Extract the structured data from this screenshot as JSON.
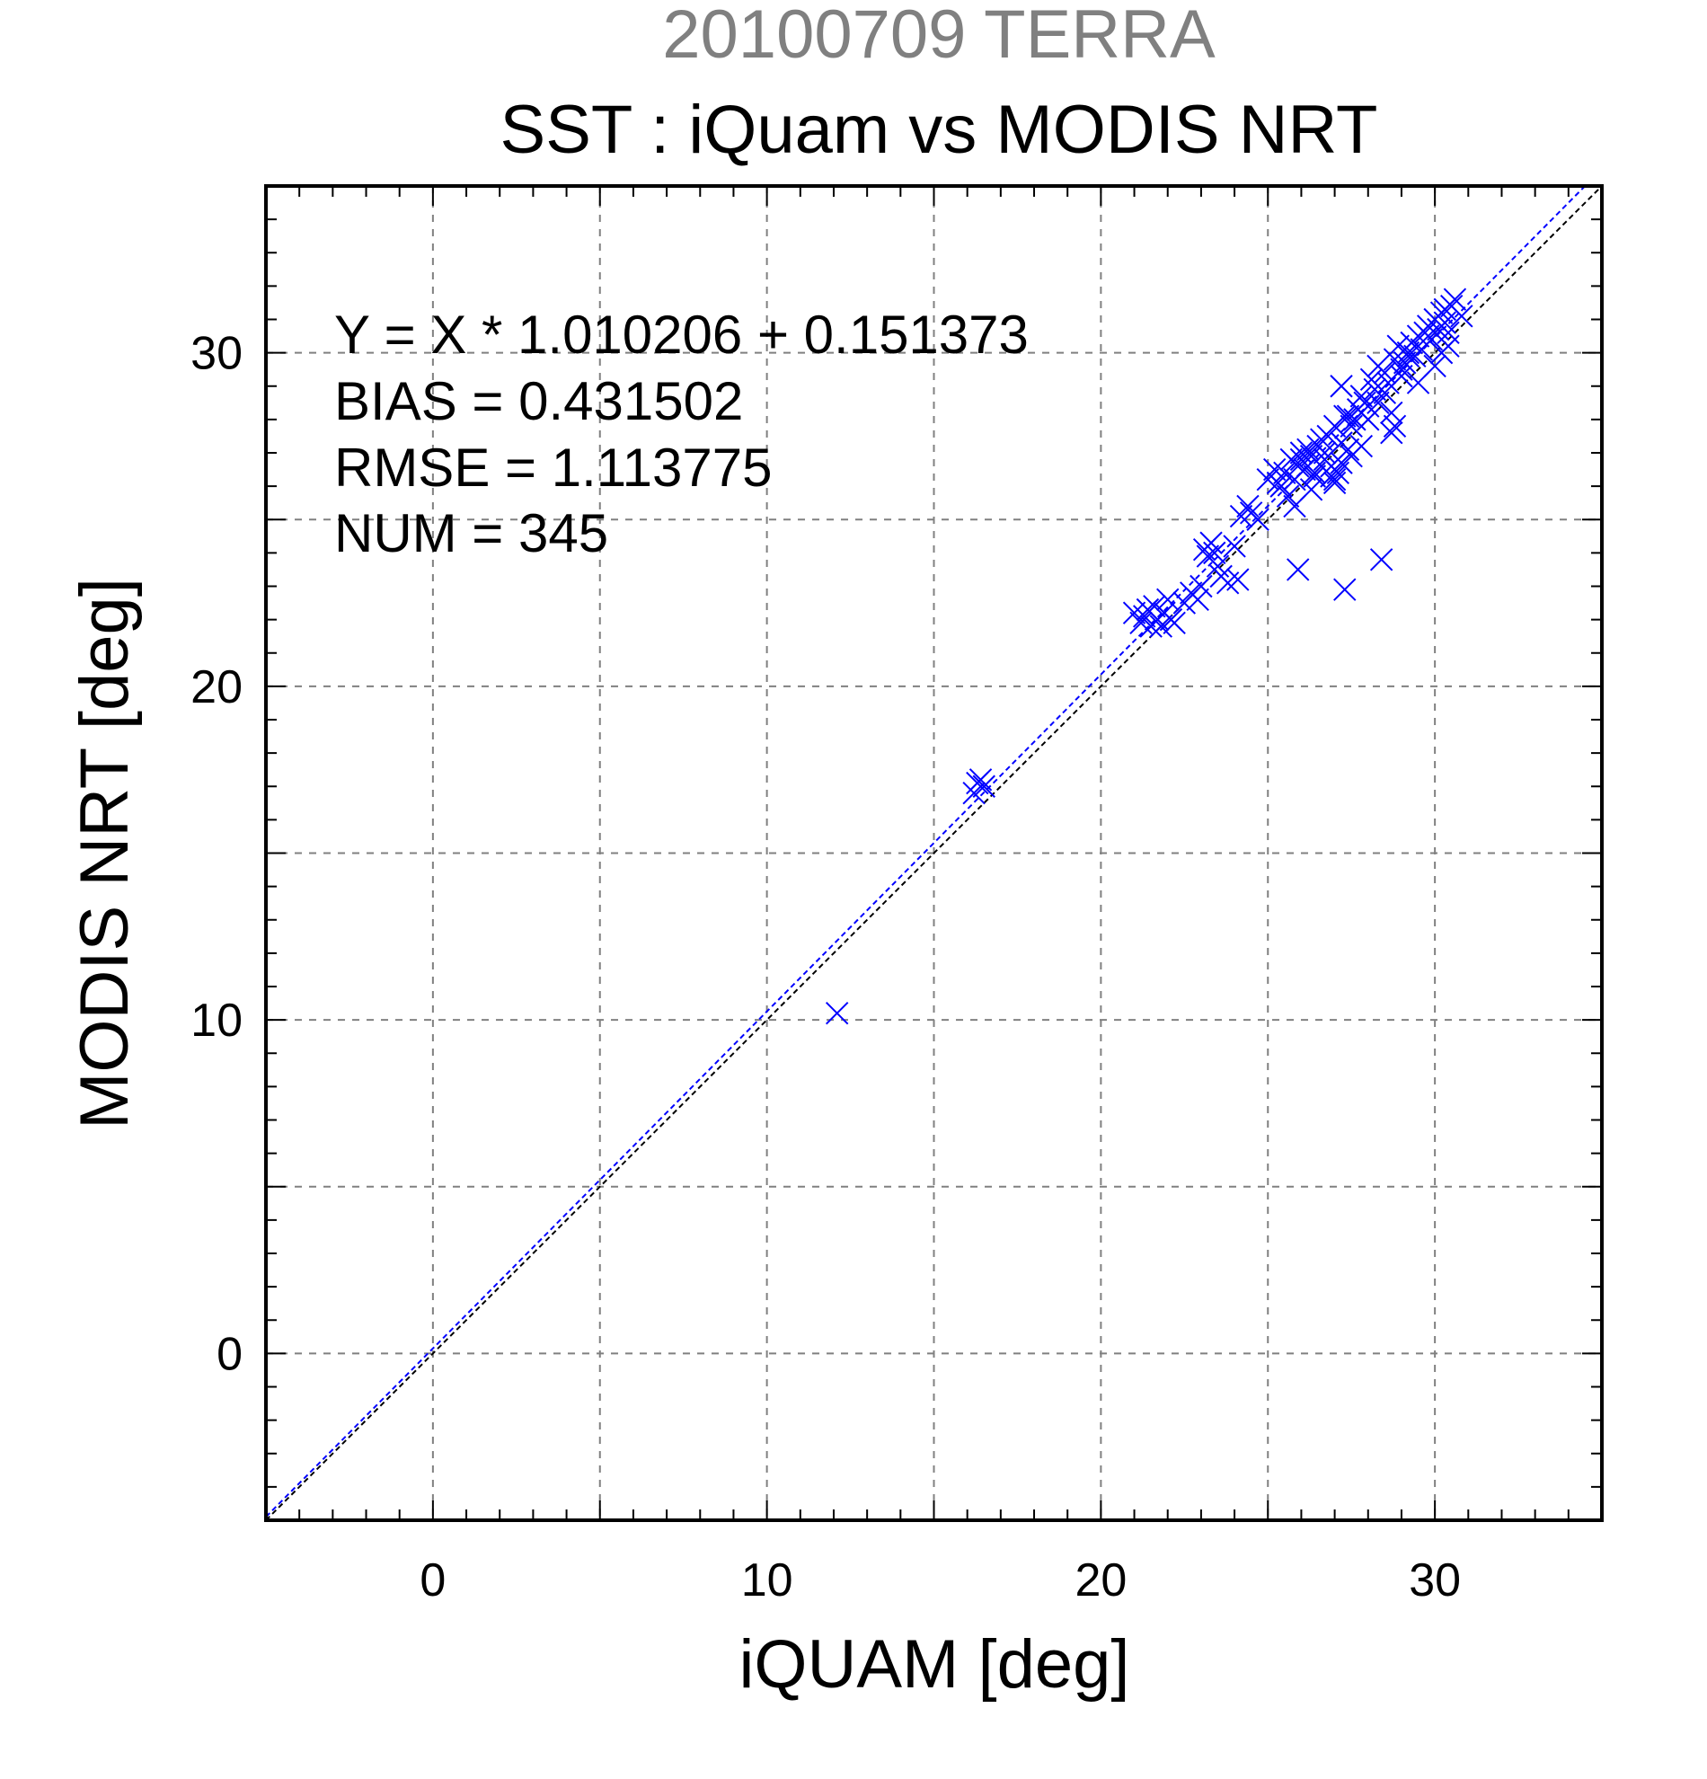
{
  "chart_data": {
    "type": "scatter",
    "supertitle": "20100709 TERRA",
    "title": "SST : iQuam vs MODIS NRT",
    "xlabel": "iQUAM [deg]",
    "ylabel": "MODIS NRT [deg]",
    "xlim": [
      -5,
      35
    ],
    "ylim": [
      -5,
      35
    ],
    "xticks": [
      0,
      10,
      20,
      30
    ],
    "yticks": [
      0,
      10,
      20,
      30
    ],
    "grid": true,
    "colors": {
      "points": "#0000ff",
      "fit_line": "#0000ff",
      "one_to_one_line": "#000000",
      "supertitle": "#808080"
    },
    "marker": "x",
    "stats": {
      "equation": "Y = X * 1.010206 + 0.151373",
      "bias": "BIAS = 0.431502",
      "rmse": "RMSE = 1.113775",
      "num": "NUM = 345"
    },
    "fit": {
      "slope": 1.010206,
      "intercept": 0.151373
    },
    "series": [
      {
        "x": [
          12.1,
          16.2,
          16.3,
          16.4,
          16.5,
          21.0,
          21.2,
          21.3,
          21.4,
          21.5,
          21.6,
          21.7,
          21.8,
          21.9,
          22.0,
          22.1,
          22.2,
          22.5,
          22.7,
          22.9,
          23.0,
          23.1,
          23.2,
          23.3,
          23.4,
          23.5,
          23.6,
          23.8,
          24.0,
          24.1,
          24.2,
          24.4,
          24.5,
          24.7,
          25.0,
          25.2,
          25.3,
          25.4,
          25.5,
          25.6,
          25.7,
          25.8,
          25.9,
          25.9,
          26.0,
          26.1,
          26.2,
          26.3,
          26.4,
          26.5,
          26.6,
          26.7,
          26.8,
          26.9,
          27.0,
          27.0,
          27.1,
          27.2,
          27.3,
          27.3,
          27.4,
          27.5,
          27.6,
          27.7,
          27.8,
          27.9,
          27.2,
          27.4,
          28.0,
          28.1,
          28.2,
          28.3,
          28.4,
          28.5,
          28.6,
          28.7,
          28.8,
          28.9,
          29.0,
          29.1,
          29.2,
          29.3,
          29.4,
          29.5,
          29.6,
          29.7,
          29.8,
          29.9,
          30.0,
          30.1,
          30.2,
          30.3,
          30.4,
          30.5,
          30.6,
          30.8,
          28.3,
          28.7,
          28.8,
          29.0,
          29.5,
          30.0,
          30.2,
          30.4,
          26.7,
          27.0,
          27.5,
          27.8,
          28.0,
          28.5,
          29.2,
          29.8,
          30.3,
          25.8,
          26.3,
          26.9,
          27.2,
          26.0,
          26.4
        ],
        "y": [
          10.2,
          16.8,
          17.1,
          17.2,
          17.0,
          22.2,
          21.9,
          22.1,
          22.3,
          21.8,
          22.4,
          22.0,
          21.8,
          22.2,
          22.6,
          22.0,
          21.9,
          22.5,
          22.8,
          22.6,
          23.0,
          24.1,
          23.9,
          24.3,
          24.0,
          23.6,
          23.3,
          23.1,
          24.2,
          23.2,
          25.1,
          25.4,
          25.2,
          25.0,
          26.2,
          26.5,
          26.1,
          26.0,
          26.4,
          25.7,
          26.8,
          26.2,
          26.6,
          23.5,
          27.0,
          26.5,
          27.1,
          26.9,
          26.4,
          27.2,
          27.4,
          26.8,
          27.5,
          26.6,
          27.8,
          26.2,
          26.4,
          27.3,
          28.1,
          22.9,
          27.1,
          27.8,
          28.0,
          28.3,
          28.7,
          28.5,
          29.0,
          28.1,
          28.4,
          29.2,
          28.9,
          29.6,
          23.8,
          29.4,
          29.1,
          27.6,
          29.8,
          30.2,
          29.5,
          29.7,
          30.0,
          30.3,
          29.9,
          30.5,
          30.1,
          30.6,
          30.8,
          30.4,
          31.0,
          30.7,
          31.2,
          30.9,
          30.6,
          31.4,
          31.6,
          31.1,
          28.5,
          28.2,
          27.8,
          29.3,
          29.1,
          29.6,
          30.0,
          30.2,
          27.0,
          26.1,
          26.9,
          27.2,
          28.0,
          28.8,
          29.9,
          30.5,
          31.3,
          25.4,
          25.9,
          26.3,
          26.7,
          26.8,
          26.3
        ]
      }
    ]
  }
}
